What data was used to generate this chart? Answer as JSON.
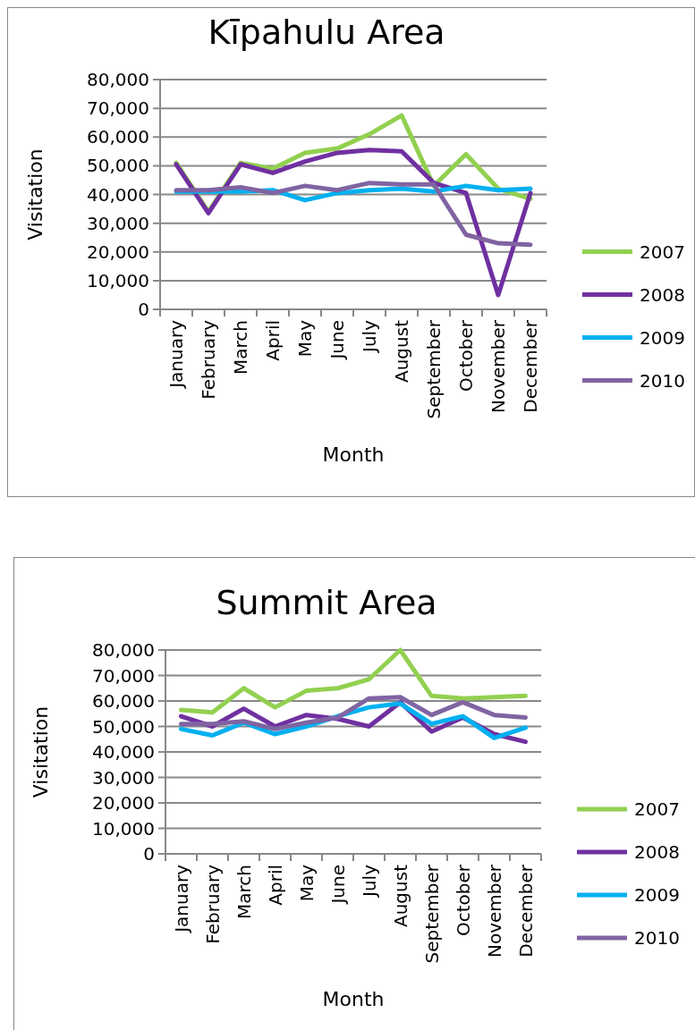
{
  "chart_data": [
    {
      "type": "line",
      "title": "Kīpahulu Area",
      "xlabel": "Month",
      "ylabel": "Visitation",
      "categories": [
        "January",
        "February",
        "March",
        "April",
        "May",
        "June",
        "July",
        "August",
        "September",
        "October",
        "November",
        "December"
      ],
      "ylim": [
        0,
        80000
      ],
      "yticks": [
        {
          "value": 0,
          "label": "0"
        },
        {
          "value": 10000,
          "label": "10,000"
        },
        {
          "value": 20000,
          "label": "20,000"
        },
        {
          "value": 30000,
          "label": "30,000"
        },
        {
          "value": 40000,
          "label": "40,000"
        },
        {
          "value": 50000,
          "label": "50,000"
        },
        {
          "value": 60000,
          "label": "60,000"
        },
        {
          "value": 70000,
          "label": "70,000"
        },
        {
          "value": 80000,
          "label": "80,000"
        }
      ],
      "grid": "y",
      "legend": "right",
      "marker": "none",
      "line_style": "solid",
      "series": [
        {
          "name": "2007",
          "color": "#92d050",
          "values": [
            51000,
            34000,
            51000,
            49000,
            54500,
            56000,
            61000,
            67500,
            43000,
            54000,
            42000,
            38500
          ]
        },
        {
          "name": "2008",
          "color": "#7030a0",
          "values": [
            50500,
            33500,
            50500,
            47500,
            51500,
            54500,
            55500,
            55000,
            44000,
            40500,
            5000,
            40500
          ]
        },
        {
          "name": "2009",
          "color": "#00b0f0",
          "values": [
            41000,
            41000,
            41000,
            41500,
            38000,
            40500,
            41500,
            42000,
            41000,
            43000,
            41500,
            42000
          ]
        },
        {
          "name": "2010",
          "color": "#8064a2",
          "values": [
            41500,
            41500,
            42500,
            40500,
            43000,
            41500,
            44000,
            43500,
            43500,
            26000,
            23000,
            22500
          ]
        }
      ]
    },
    {
      "type": "line",
      "title": "Summit Area",
      "xlabel": "Month",
      "ylabel": "Visitation",
      "categories": [
        "January",
        "February",
        "March",
        "April",
        "May",
        "June",
        "July",
        "August",
        "September",
        "October",
        "November",
        "December"
      ],
      "ylim": [
        0,
        80000
      ],
      "yticks": [
        {
          "value": 0,
          "label": "0"
        },
        {
          "value": 10000,
          "label": "10,000"
        },
        {
          "value": 20000,
          "label": "20,000"
        },
        {
          "value": 30000,
          "label": "30,000"
        },
        {
          "value": 40000,
          "label": "40,000"
        },
        {
          "value": 50000,
          "label": "50,000"
        },
        {
          "value": 60000,
          "label": "60,000"
        },
        {
          "value": 70000,
          "label": "70,000"
        },
        {
          "value": 80000,
          "label": "80,000"
        }
      ],
      "grid": "y",
      "legend": "right",
      "marker": "none",
      "line_style": "solid",
      "series": [
        {
          "name": "2007",
          "color": "#92d050",
          "values": [
            56500,
            55500,
            65000,
            57500,
            64000,
            65000,
            68500,
            80000,
            62000,
            61000,
            61500,
            62000
          ]
        },
        {
          "name": "2008",
          "color": "#7030a0",
          "values": [
            54000,
            50000,
            57000,
            50000,
            54500,
            53000,
            50000,
            59500,
            48000,
            53500,
            47000,
            44000
          ]
        },
        {
          "name": "2009",
          "color": "#00b0f0",
          "values": [
            49000,
            46500,
            51500,
            47000,
            50000,
            54000,
            57500,
            59000,
            51000,
            54000,
            45500,
            49500
          ]
        },
        {
          "name": "2010",
          "color": "#8064a2",
          "values": [
            51000,
            51000,
            52000,
            49000,
            51500,
            53500,
            61000,
            61500,
            54500,
            59500,
            54500,
            53500
          ]
        }
      ]
    }
  ]
}
